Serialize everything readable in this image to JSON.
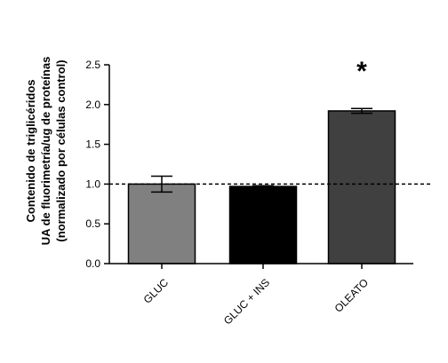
{
  "chart_data": {
    "type": "bar",
    "categories": [
      "GLUC",
      "GLUC + INS",
      "OLEATO"
    ],
    "values": [
      1.0,
      0.97,
      1.92
    ],
    "errors": [
      0.1,
      0.01,
      0.03
    ],
    "colors": [
      "#808080",
      "#000000",
      "#404040"
    ],
    "ylabel_lines": [
      "Contenido de triglicéridos",
      "UA de fluorimetría/ug de proteínas",
      "(normalizado por células control)"
    ],
    "ylim": [
      0.0,
      2.5
    ],
    "yticks": [
      "0.0",
      "0.5",
      "1.0",
      "1.5",
      "2.0",
      "2.5"
    ],
    "reference_line": 1.0,
    "significance": {
      "category": "OLEATO",
      "label": "*"
    },
    "grid": false,
    "legend": "none"
  }
}
